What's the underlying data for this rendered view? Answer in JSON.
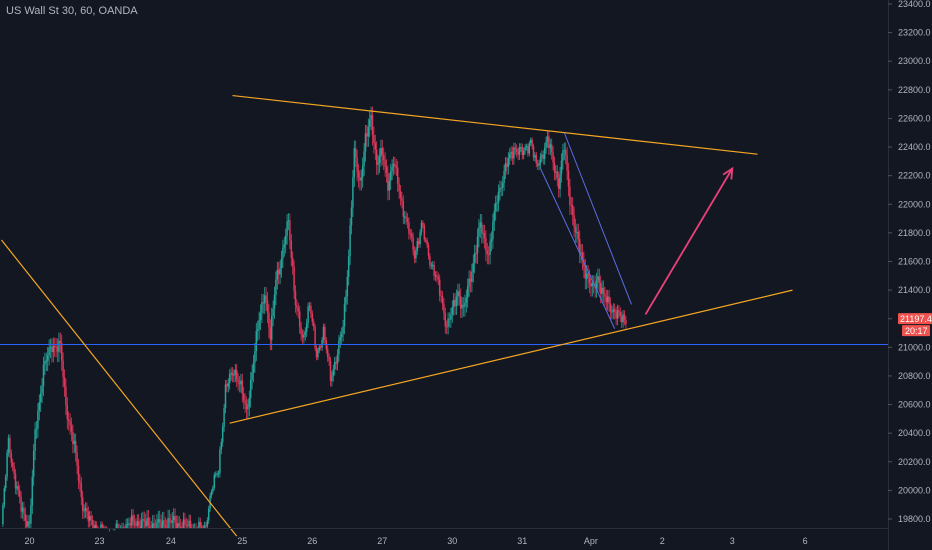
{
  "header": {
    "symbol_title": "US Wall St 30, 60, OANDA"
  },
  "colors": {
    "background": "#131722",
    "bull": "#26a69a",
    "bear": "#ef5350",
    "bear_body": "#e0385a",
    "trendline": "#f5a623",
    "horizontal_line": "#2962ff",
    "channel": "#5b6ee1",
    "arrow": "#ec407a",
    "price_tag": "#ef5350",
    "axis_text": "#b2b5be"
  },
  "price_tag": {
    "price": "21197.4",
    "countdown": "20:17"
  },
  "chart_data": {
    "type": "candlestick",
    "title": "US Wall St 30, 60, OANDA",
    "timeframe": "60",
    "ylim": [
      19700,
      23400
    ],
    "y_ticks": [
      "23400.0",
      "23200.0",
      "23000.0",
      "22800.0",
      "22600.0",
      "22400.0",
      "22200.0",
      "22000.0",
      "21800.0",
      "21600.0",
      "21400.0",
      "21200.0",
      "21000.0",
      "20800.0",
      "20600.0",
      "20400.0",
      "20200.0",
      "20000.0",
      "19800.0"
    ],
    "y_tick_values": [
      23400,
      23200,
      23000,
      22800,
      22600,
      22400,
      22200,
      22000,
      21800,
      21600,
      21400,
      21200,
      21000,
      20800,
      20600,
      20400,
      20200,
      20000,
      19800
    ],
    "x_ticks": [
      "20",
      "23",
      "24",
      "25",
      "26",
      "27",
      "30",
      "31",
      "Apr",
      "2",
      "3",
      "6"
    ],
    "x_tick_index": [
      20,
      70,
      121,
      172,
      222,
      272,
      322,
      372,
      421,
      472,
      522,
      574
    ],
    "last_price": 21197.4,
    "horizontal_levels": [
      21020
    ],
    "trendlines": [
      {
        "name": "upper-resistance",
        "from": [
          165,
          22760
        ],
        "to": [
          540,
          22350
        ]
      },
      {
        "name": "lower-support",
        "from": [
          163,
          20470
        ],
        "to": [
          565,
          21400
        ]
      },
      {
        "name": "descending-line",
        "from": [
          0,
          21750
        ],
        "to": [
          168,
          19680
        ]
      }
    ],
    "channel_lines": [
      {
        "from": [
          385,
          22250
        ],
        "to": [
          438,
          21130
        ]
      },
      {
        "from": [
          402,
          22500
        ],
        "to": [
          450,
          21300
        ]
      }
    ],
    "arrow": {
      "from": [
        460,
        21230
      ],
      "to": [
        522,
        22250
      ]
    },
    "anchors": [
      [
        0,
        19750
      ],
      [
        5,
        20350
      ],
      [
        10,
        20050
      ],
      [
        14,
        19880
      ],
      [
        20,
        19750
      ],
      [
        24,
        20400
      ],
      [
        30,
        20850
      ],
      [
        36,
        21020
      ],
      [
        42,
        21000
      ],
      [
        46,
        20600
      ],
      [
        52,
        20300
      ],
      [
        58,
        19900
      ],
      [
        63,
        19780
      ],
      [
        70,
        19720
      ],
      [
        80,
        19700
      ],
      [
        95,
        19780
      ],
      [
        110,
        19750
      ],
      [
        120,
        19780
      ],
      [
        135,
        19740
      ],
      [
        145,
        19720
      ],
      [
        150,
        20000
      ],
      [
        155,
        20150
      ],
      [
        160,
        20700
      ],
      [
        166,
        20850
      ],
      [
        170,
        20750
      ],
      [
        175,
        20550
      ],
      [
        180,
        20900
      ],
      [
        184,
        21200
      ],
      [
        188,
        21400
      ],
      [
        192,
        21050
      ],
      [
        196,
        21500
      ],
      [
        200,
        21600
      ],
      [
        205,
        21900
      ],
      [
        210,
        21300
      ],
      [
        215,
        21050
      ],
      [
        220,
        21300
      ],
      [
        225,
        20950
      ],
      [
        230,
        21100
      ],
      [
        235,
        20800
      ],
      [
        240,
        20950
      ],
      [
        244,
        21150
      ],
      [
        248,
        21650
      ],
      [
        252,
        22350
      ],
      [
        256,
        22150
      ],
      [
        260,
        22450
      ],
      [
        264,
        22600
      ],
      [
        268,
        22300
      ],
      [
        272,
        22350
      ],
      [
        276,
        22150
      ],
      [
        280,
        22300
      ],
      [
        285,
        22050
      ],
      [
        290,
        21850
      ],
      [
        295,
        21650
      ],
      [
        300,
        21850
      ],
      [
        305,
        21650
      ],
      [
        310,
        21500
      ],
      [
        314,
        21350
      ],
      [
        318,
        21150
      ],
      [
        322,
        21250
      ],
      [
        326,
        21400
      ],
      [
        330,
        21250
      ],
      [
        336,
        21550
      ],
      [
        342,
        21850
      ],
      [
        348,
        21650
      ],
      [
        354,
        22050
      ],
      [
        360,
        22250
      ],
      [
        366,
        22400
      ],
      [
        372,
        22350
      ],
      [
        378,
        22450
      ],
      [
        382,
        22250
      ],
      [
        386,
        22350
      ],
      [
        390,
        22450
      ],
      [
        394,
        22300
      ],
      [
        398,
        22150
      ],
      [
        402,
        22400
      ],
      [
        406,
        22050
      ],
      [
        410,
        21800
      ],
      [
        414,
        21650
      ],
      [
        418,
        21500
      ],
      [
        422,
        21400
      ],
      [
        426,
        21500
      ],
      [
        430,
        21350
      ],
      [
        434,
        21300
      ],
      [
        438,
        21250
      ],
      [
        442,
        21200
      ],
      [
        446,
        21200
      ]
    ]
  }
}
